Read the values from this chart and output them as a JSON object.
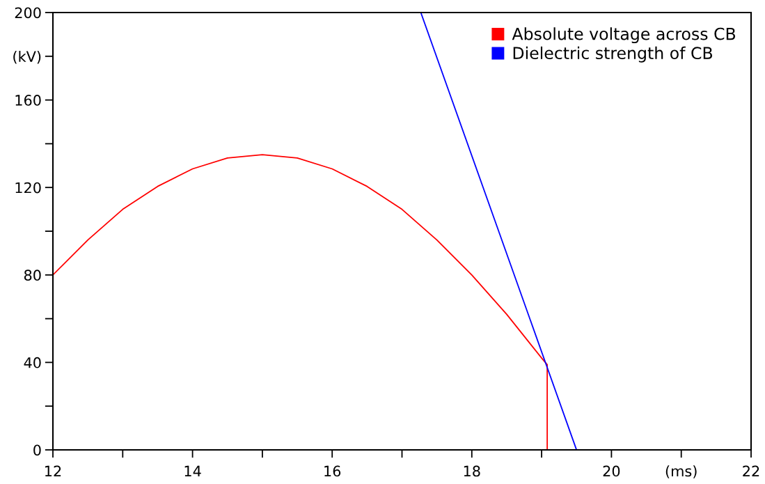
{
  "chart_data": {
    "type": "line",
    "xlim": [
      12,
      22
    ],
    "ylim": [
      0,
      200
    ],
    "xticks": [
      12,
      {
        "value": 13,
        "label": null
      },
      14,
      {
        "value": 15,
        "label": null
      },
      16,
      {
        "value": 17,
        "label": null
      },
      18,
      {
        "value": 19,
        "label": null
      },
      20,
      {
        "value": 21,
        "label": "(ms)"
      },
      22
    ],
    "yticks": [
      0,
      {
        "value": 20,
        "label": null
      },
      40,
      {
        "value": 60,
        "label": null
      },
      80,
      {
        "value": 100,
        "label": null
      },
      120,
      {
        "value": 140,
        "label": null
      },
      160,
      {
        "value": 180,
        "label": "(kV)"
      },
      200
    ],
    "grid": false,
    "legend": "top right",
    "marker": "none",
    "line_style": "solid",
    "series": [
      {
        "name": "Absolute voltage across CB",
        "color": "#ff0000",
        "x": [
          12,
          12.5,
          13,
          13.5,
          14,
          14.5,
          15,
          15.5,
          16,
          16.5,
          17,
          17.5,
          18,
          18.5,
          19,
          19.08,
          19.08,
          22
        ],
        "values": [
          80,
          96,
          110,
          120.5,
          128.5,
          133.5,
          135,
          133.5,
          128.5,
          120.5,
          110,
          96,
          80,
          62,
          42,
          39,
          0,
          0
        ]
      },
      {
        "name": "Dielectric strength of CB",
        "color": "#0000ff",
        "x": [
          17.27,
          19.5
        ],
        "values": [
          200,
          0
        ]
      }
    ]
  }
}
